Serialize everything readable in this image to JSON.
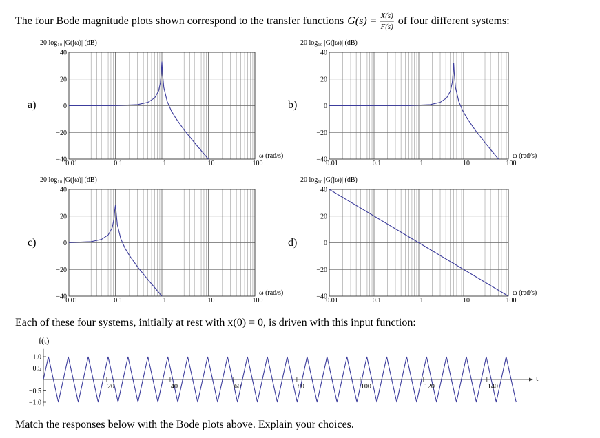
{
  "text": {
    "intro": "The four Bode magnitude plots shown correspond to the transfer functions",
    "intro_lhs": "G(s) =",
    "intro_num": "X(s)",
    "intro_den": "F(s)",
    "intro_end": "of four different systems:",
    "middle": "Each of these four systems, initially at rest with x(0) = 0, is driven with this input function:",
    "outro": "Match the responses below with the Bode plots above. Explain your choices."
  },
  "chart_data": [
    {
      "type": "line",
      "panel": "a)",
      "ylabel": "20 log₁₀ |G(jω)| (dB)",
      "xlabel": "ω (rad/s)",
      "log_x": true,
      "grid": true,
      "color": "#3c3c9c",
      "x": [
        0.01,
        0.1,
        0.3,
        0.5,
        0.7,
        0.85,
        0.93,
        0.97,
        1,
        1.03,
        1.1,
        1.3,
        1.6,
        2,
        3,
        5,
        10
      ],
      "values": [
        0,
        0.09,
        0.82,
        2.5,
        5.85,
        11.1,
        17.4,
        24.6,
        33,
        24.3,
        13.6,
        3.2,
        -3.9,
        -9.5,
        -18.1,
        -27.6,
        -40
      ],
      "xlim": [
        0.01,
        100
      ],
      "ylim": [
        -40,
        40
      ],
      "xticks": [
        0.01,
        0.1,
        1,
        10,
        100
      ],
      "yticks": [
        {
          "value": -40,
          "label": "−40"
        },
        {
          "value": -20,
          "label": "−20"
        },
        0,
        20,
        40
      ]
    },
    {
      "type": "line",
      "panel": "b)",
      "ylabel": "20 log₁₀ |G(jω)| (dB)",
      "xlabel": "ω (rad/s)",
      "log_x": true,
      "grid": true,
      "color": "#3c3c9c",
      "x": [
        0.01,
        0.6,
        1.8,
        3,
        4.2,
        5.1,
        5.58,
        5.82,
        6,
        6.18,
        6.6,
        7.8,
        9.6,
        12,
        18,
        30,
        60
      ],
      "values": [
        0,
        0.09,
        0.82,
        2.5,
        5.85,
        11.1,
        17.4,
        24.6,
        32,
        24.3,
        13.6,
        3.2,
        -3.9,
        -9.5,
        -18.1,
        -27.6,
        -40
      ],
      "xlim": [
        0.01,
        100
      ],
      "ylim": [
        -40,
        40
      ],
      "xticks": [
        0.01,
        0.1,
        1,
        10,
        100
      ],
      "yticks": [
        {
          "value": -40,
          "label": "−40"
        },
        {
          "value": -20,
          "label": "−20"
        },
        0,
        20,
        40
      ]
    },
    {
      "type": "line",
      "panel": "c)",
      "ylabel": "20 log₁₀ |G(jω)| (dB)",
      "xlabel": "ω (rad/s)",
      "log_x": true,
      "grid": true,
      "color": "#3c3c9c",
      "x": [
        0.01,
        0.03,
        0.05,
        0.07,
        0.085,
        0.093,
        0.097,
        0.1,
        0.103,
        0.11,
        0.13,
        0.16,
        0.2,
        0.3,
        0.5,
        1
      ],
      "values": [
        0.09,
        0.82,
        2.5,
        5.85,
        11.1,
        17.4,
        24.6,
        28,
        24.3,
        13.6,
        3.2,
        -3.9,
        -9.5,
        -18.1,
        -27.6,
        -40
      ],
      "xlim": [
        0.01,
        100
      ],
      "ylim": [
        -40,
        40
      ],
      "xticks": [
        0.01,
        0.1,
        1,
        10,
        100
      ],
      "yticks": [
        {
          "value": -40,
          "label": "−40"
        },
        {
          "value": -20,
          "label": "−20"
        },
        0,
        20,
        40
      ]
    },
    {
      "type": "line",
      "panel": "d)",
      "ylabel": "20 log₁₀ |G(jω)| (dB)",
      "xlabel": "ω (rad/s)",
      "log_x": true,
      "grid": true,
      "color": "#3c3c9c",
      "x": [
        0.01,
        100
      ],
      "values": [
        40,
        -40
      ],
      "xlim": [
        0.01,
        100
      ],
      "ylim": [
        -40,
        40
      ],
      "xticks": [
        0.01,
        0.1,
        1,
        10,
        100
      ],
      "yticks": [
        {
          "value": -40,
          "label": "−40"
        },
        {
          "value": -20,
          "label": "−20"
        },
        0,
        20,
        40
      ]
    },
    {
      "type": "line",
      "ylabel": "f(t)",
      "xlabel": "t",
      "log_x": false,
      "grid": false,
      "color": "#3c3c9c",
      "x": [
        0,
        1.57,
        4.71,
        7.85,
        11.0,
        14.14,
        17.28,
        20.42,
        23.56,
        26.7,
        29.85,
        32.99,
        36.13,
        39.27,
        42.41,
        45.55,
        48.69,
        51.84,
        54.98,
        58.12,
        61.26,
        64.4,
        67.54,
        70.69,
        73.83,
        76.97,
        80.11,
        83.25,
        86.39,
        89.54,
        92.68,
        95.82,
        98.96,
        102.1,
        105.24,
        108.38,
        111.53,
        114.67,
        117.81,
        120.95,
        124.09,
        127.23,
        130.38,
        133.52,
        136.66,
        139.8,
        142.94,
        146.08,
        149.23
      ],
      "values": [
        0,
        1,
        -1,
        1,
        -1,
        1,
        -1,
        1,
        -1,
        1,
        -1,
        1,
        -1,
        1,
        -1,
        1,
        -1,
        1,
        -1,
        1,
        -1,
        1,
        -1,
        1,
        -1,
        1,
        -1,
        1,
        -1,
        1,
        -1,
        1,
        -1,
        1,
        -1,
        1,
        -1,
        1,
        -1,
        1,
        -1,
        1,
        -1,
        1,
        -1,
        1,
        -1,
        1,
        -1
      ],
      "xlim": [
        0,
        152
      ],
      "ylim": [
        -1.1,
        1.1
      ],
      "xticks": [
        20,
        40,
        60,
        80,
        100,
        120,
        140
      ],
      "yticks": [
        {
          "value": 1,
          "label": "1.0"
        },
        0.5,
        {
          "value": -0.5,
          "label": "−0.5"
        },
        {
          "value": -1,
          "label": "−1.0"
        }
      ]
    }
  ]
}
